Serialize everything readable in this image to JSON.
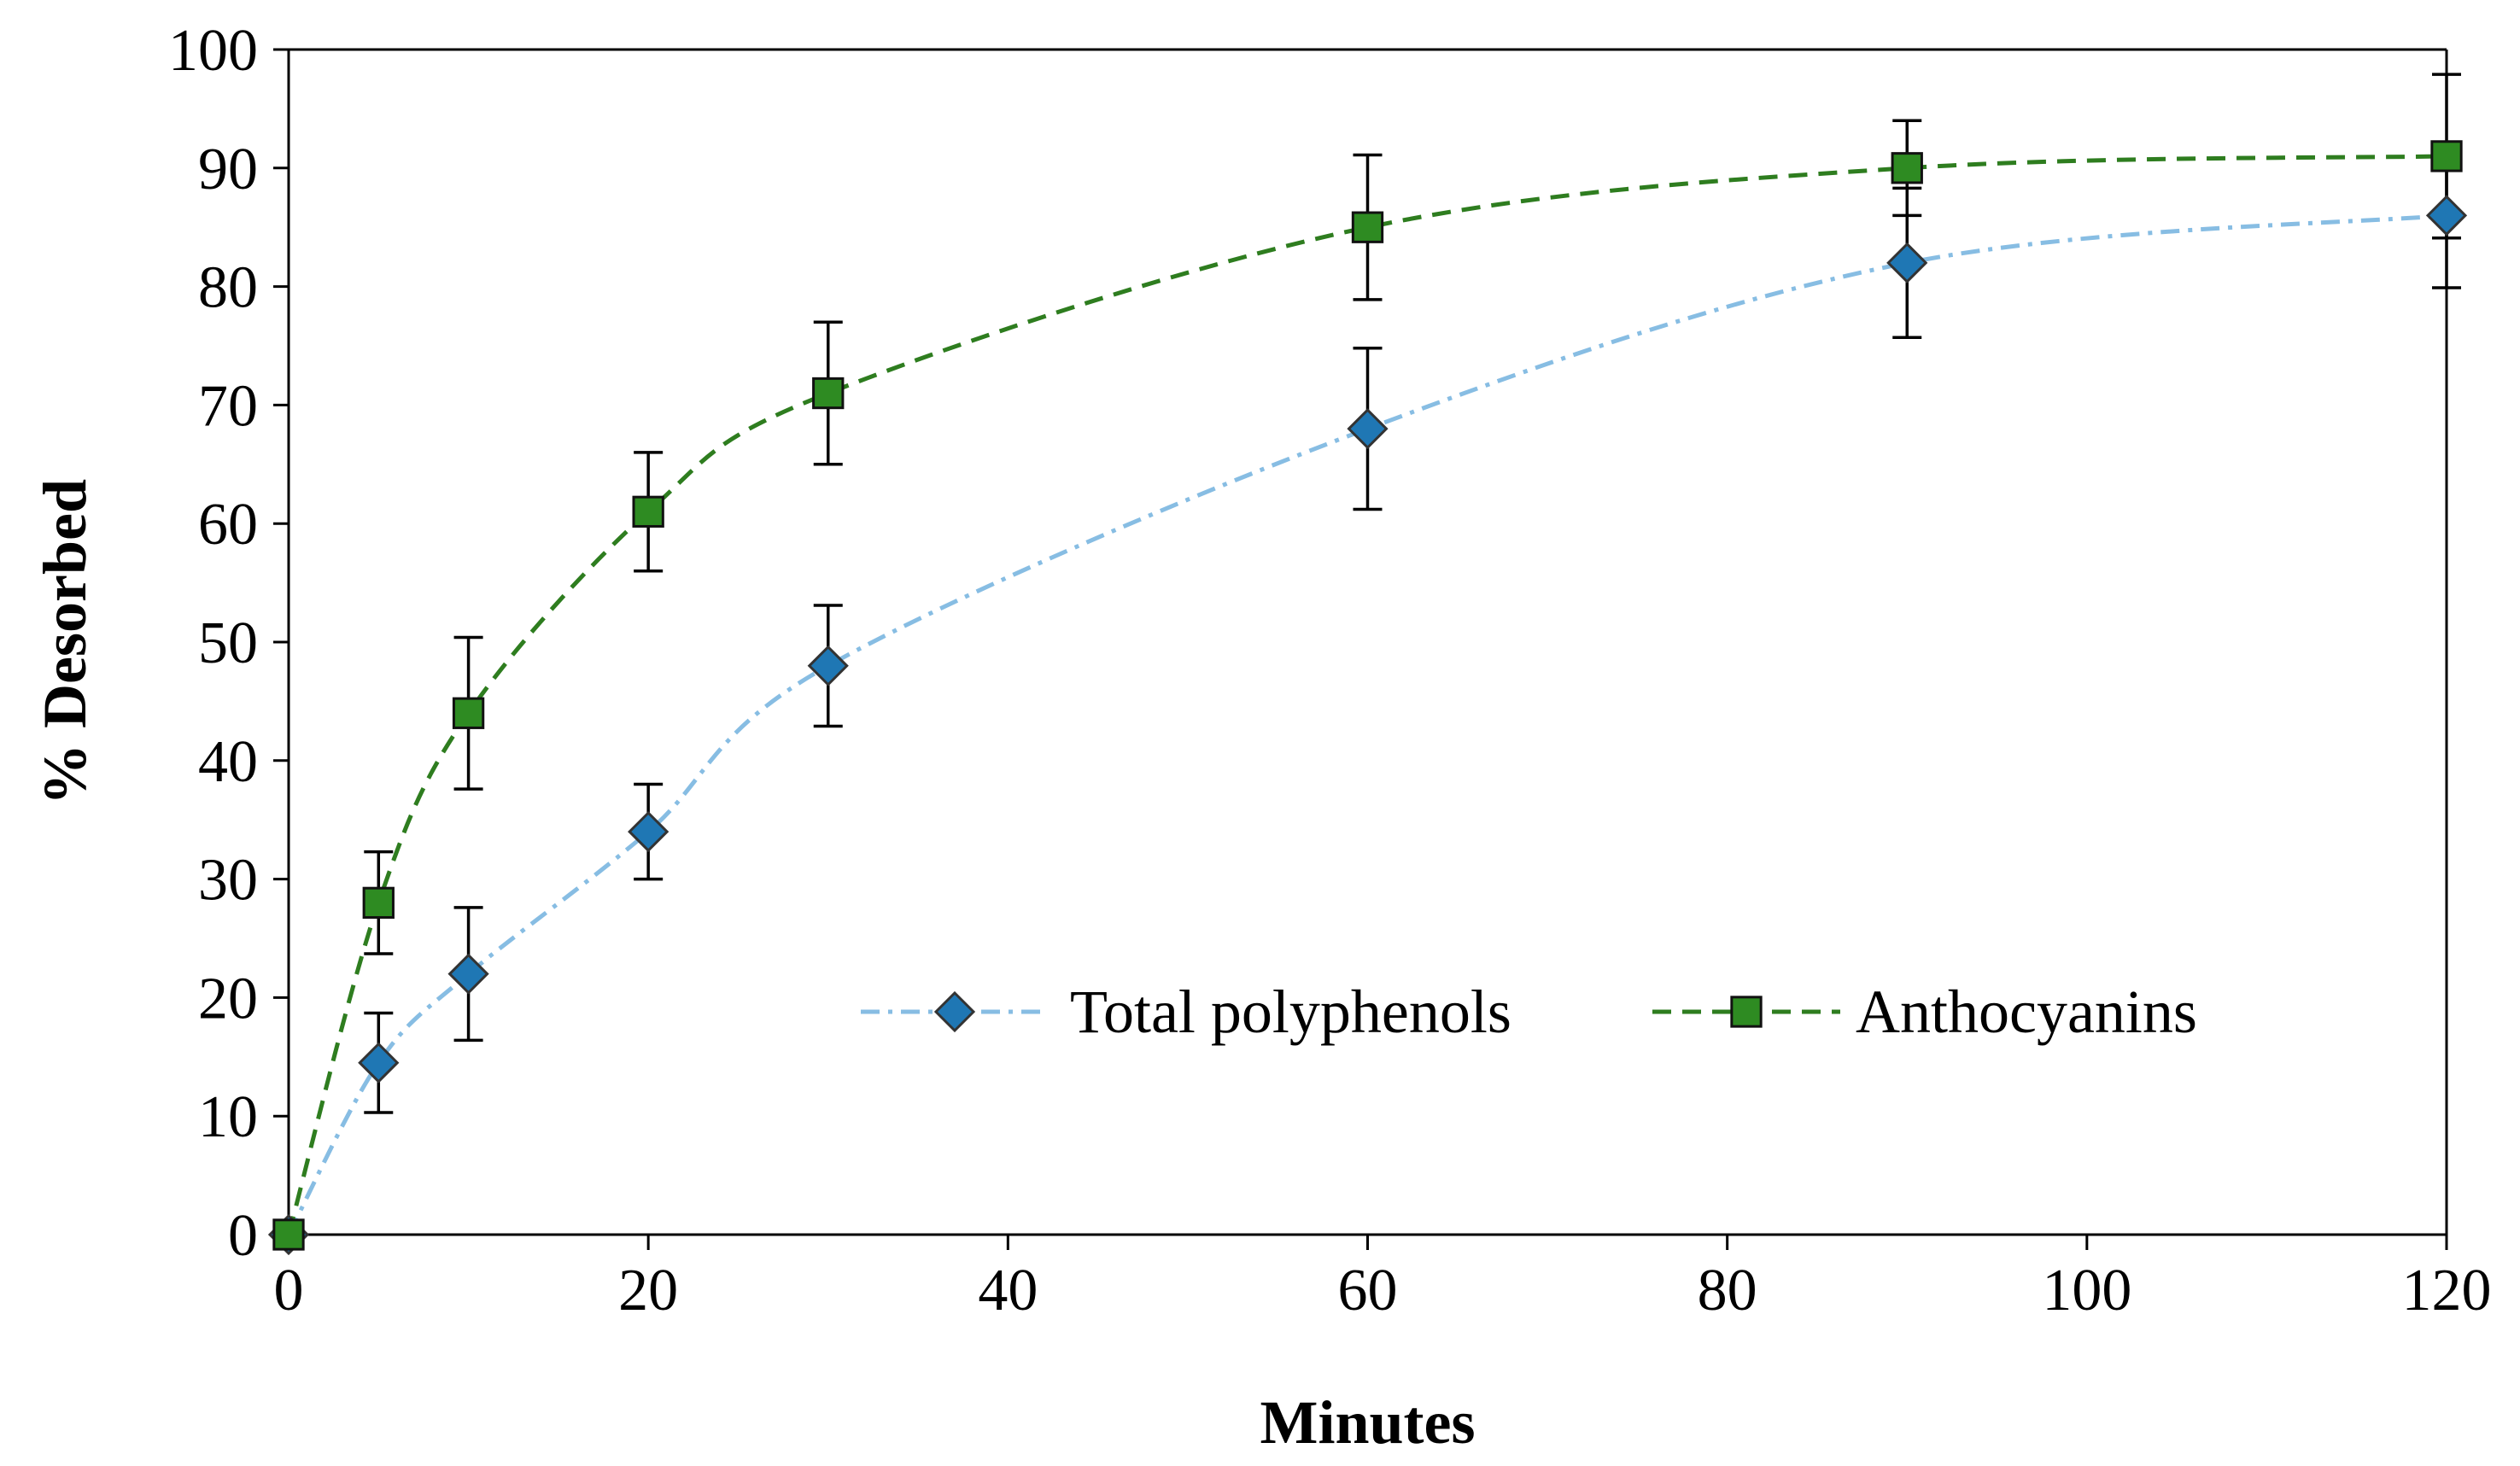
{
  "chart_data": {
    "type": "scatter",
    "title": "",
    "xlabel": "Minutes",
    "ylabel": "% Desorbed",
    "xlim": [
      0,
      120
    ],
    "ylim": [
      0,
      100
    ],
    "x_ticks": [
      0,
      20,
      40,
      60,
      80,
      100,
      120
    ],
    "y_ticks": [
      0,
      10,
      20,
      30,
      40,
      50,
      60,
      70,
      80,
      90,
      100
    ],
    "grid": false,
    "legend_position": "bottom-right inside plot",
    "series": [
      {
        "name": "Total polyphenols",
        "marker": "diamond",
        "marker_color": "#1f77b4",
        "line_color": "#87bde3",
        "line_style": "dash-dot",
        "x": [
          0,
          5,
          10,
          20,
          30,
          60,
          90,
          120
        ],
        "y": [
          0,
          14.5,
          22,
          34,
          48,
          68,
          82,
          86
        ],
        "error": [
          0,
          4.2,
          5.6,
          4.0,
          5.1,
          6.8,
          6.3,
          6.1
        ]
      },
      {
        "name": "Anthocyanins",
        "marker": "square",
        "marker_color": "#2e8b22",
        "line_color": "#2e7d1f",
        "line_style": "dashed",
        "x": [
          0,
          5,
          10,
          20,
          30,
          60,
          90,
          120
        ],
        "y": [
          0,
          28,
          44,
          61,
          71,
          85,
          90,
          91
        ],
        "error": [
          0,
          4.3,
          6.4,
          5.0,
          6.0,
          6.1,
          4.0,
          6.9
        ]
      }
    ]
  }
}
